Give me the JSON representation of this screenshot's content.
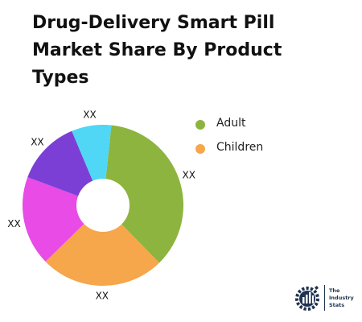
{
  "chart_data": {
    "type": "pie",
    "title": "Drug-Delivery Smart Pill Market Share By Product Types",
    "legend": {
      "placement": "right",
      "entries": [
        {
          "label": "Adult",
          "color": "#8db43e"
        },
        {
          "label": "Children",
          "color": "#f6a64b"
        }
      ]
    },
    "slices": [
      {
        "label": "XX",
        "value": 36,
        "color": "#8db43e"
      },
      {
        "label": "XX",
        "value": 25,
        "color": "#f6a64b"
      },
      {
        "label": "XX",
        "value": 18,
        "color": "#e84be6"
      },
      {
        "label": "XX",
        "value": 13,
        "color": "#7b3fd6"
      },
      {
        "label": "XX",
        "value": 8,
        "color": "#4fd7f5"
      }
    ],
    "donut": true
  },
  "logo": {
    "line1": "The",
    "line2": "Industry",
    "line3": "Stats",
    "color": "#1f3350"
  }
}
